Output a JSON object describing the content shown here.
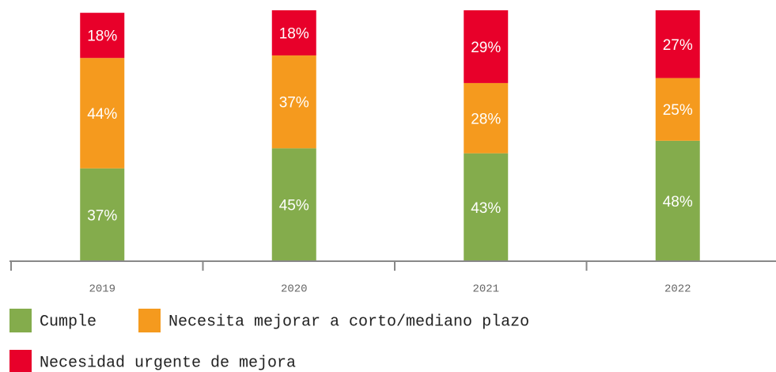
{
  "chart_data": {
    "type": "stacked_bar",
    "categories": [
      "2019",
      "2020",
      "2021",
      "2022"
    ],
    "series": [
      {
        "name": "Cumple",
        "color": "#84ac4c",
        "values": [
          37,
          45,
          43,
          48
        ],
        "value_labels": [
          "37%",
          "45%",
          "43%",
          "48%"
        ]
      },
      {
        "name": "Necesita mejorar a corto/mediano plazo",
        "color": "#f59a1e",
        "values": [
          44,
          37,
          28,
          25
        ],
        "value_labels": [
          "44%",
          "37%",
          "28%",
          "25%"
        ]
      },
      {
        "name": "Necesidad urgente de mejora",
        "color": "#e8002a",
        "values": [
          18,
          18,
          29,
          27
        ],
        "value_labels": [
          "18%",
          "18%",
          "29%",
          "27%"
        ]
      }
    ],
    "ylim": [
      0,
      100
    ],
    "legend": "bottom"
  }
}
